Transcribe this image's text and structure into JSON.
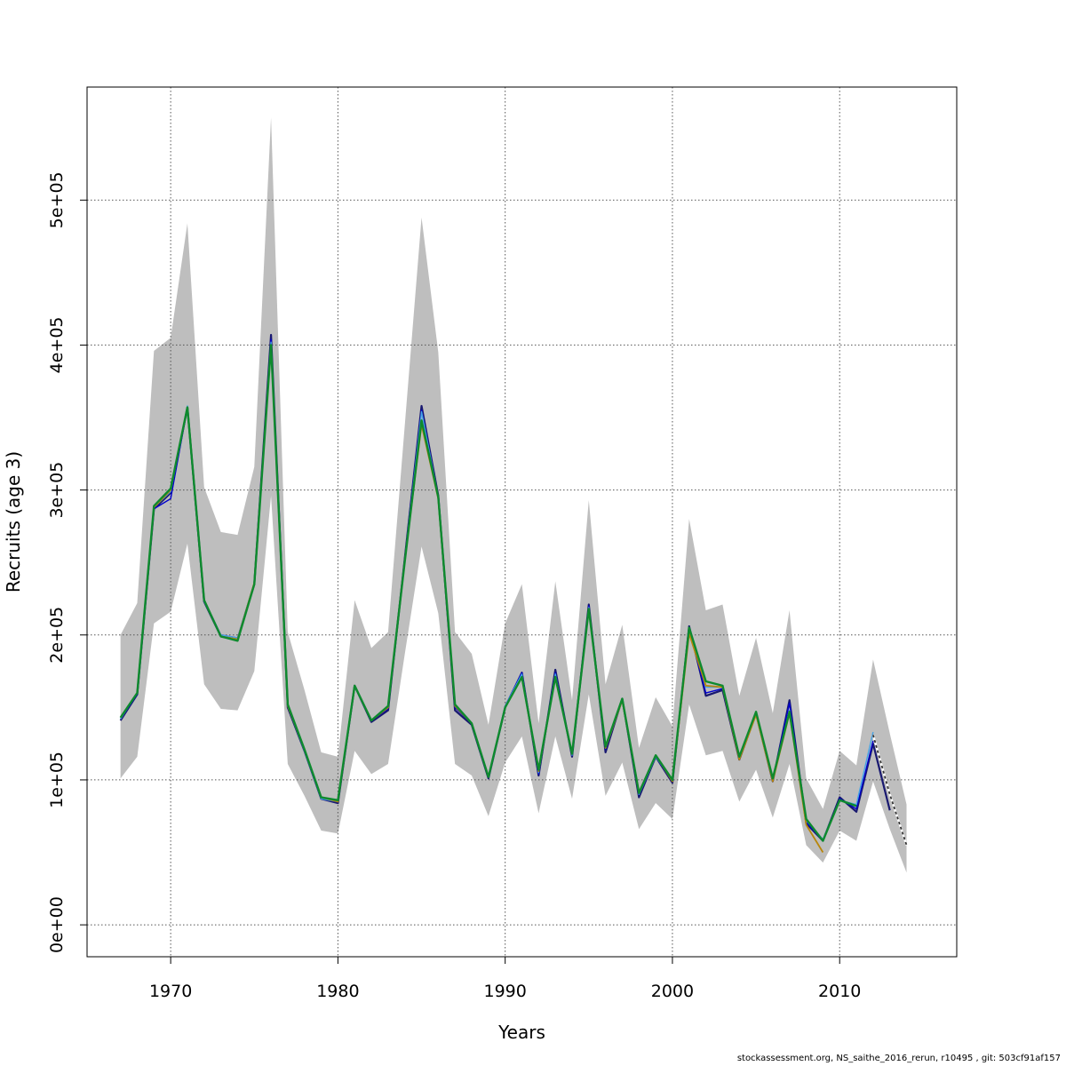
{
  "chart_data": {
    "type": "line",
    "xlabel": "Years",
    "ylabel": "Recruits (age 3)",
    "xlim": [
      1965,
      2017
    ],
    "ylim": [
      -22000,
      578000
    ],
    "x_ticks": [
      1970,
      1980,
      1990,
      2000,
      2010
    ],
    "x_tick_labels": [
      "1970",
      "1980",
      "1990",
      "2000",
      "2010"
    ],
    "y_ticks": [
      0,
      100000,
      200000,
      300000,
      400000,
      500000
    ],
    "y_tick_labels": [
      "0e+00",
      "1e+05",
      "2e+05",
      "3e+05",
      "4e+05",
      "5e+05"
    ],
    "grid": true,
    "footer": "stockassessment.org, NS_saithe_2016_rerun, r10495 , git: 503cf91af157",
    "colors": {
      "band": "#bebebe",
      "grid": "#555555",
      "navy": "#191970",
      "blue": "#0000cd",
      "skyblue": "#45a3e6",
      "goldenrod": "#b8860b",
      "green": "#0e8a2e",
      "dashed": "#333333"
    },
    "confidence_band": {
      "x": [
        1967,
        1968,
        1969,
        1970,
        1971,
        1972,
        1973,
        1974,
        1975,
        1976,
        1977,
        1978,
        1979,
        1980,
        1981,
        1982,
        1983,
        1984,
        1985,
        1986,
        1987,
        1988,
        1989,
        1990,
        1991,
        1992,
        1993,
        1994,
        1995,
        1996,
        1997,
        1998,
        1999,
        2000,
        2001,
        2002,
        2003,
        2004,
        2005,
        2006,
        2007,
        2008,
        2009,
        2010,
        2011,
        2012,
        2013,
        2014
      ],
      "upper": [
        200000,
        222000,
        396000,
        405000,
        484000,
        302000,
        271000,
        269000,
        316000,
        557000,
        202000,
        162000,
        119000,
        116000,
        224000,
        191000,
        202000,
        345000,
        488000,
        395000,
        202000,
        187000,
        138000,
        208000,
        235000,
        139000,
        237000,
        155000,
        293000,
        166000,
        207000,
        122000,
        157000,
        137000,
        280000,
        217000,
        221000,
        158000,
        198000,
        146000,
        217000,
        101000,
        80000,
        120000,
        110000,
        183000,
        132000,
        83000
      ],
      "lower": [
        101000,
        116000,
        208000,
        216000,
        263000,
        166000,
        149000,
        148000,
        175000,
        296000,
        111000,
        89000,
        65000,
        63000,
        120000,
        104000,
        111000,
        187000,
        261000,
        215000,
        111000,
        103000,
        75000,
        112000,
        130000,
        77000,
        130000,
        87000,
        159000,
        89000,
        112000,
        66000,
        84000,
        73000,
        152000,
        117000,
        120000,
        85000,
        107000,
        74000,
        111000,
        55000,
        43000,
        65000,
        58000,
        99000,
        66000,
        36000
      ]
    },
    "series": [
      {
        "color": "navy",
        "width": 2.2,
        "x": [
          1967,
          1968,
          1969,
          1970,
          1971,
          1972,
          1973,
          1974,
          1975,
          1976,
          1977,
          1978,
          1979,
          1980,
          1981,
          1982,
          1983,
          1984,
          1985,
          1986,
          1987,
          1988,
          1989,
          1990,
          1991,
          1992,
          1993,
          1994,
          1995,
          1996,
          1997,
          1998,
          1999,
          2000,
          2001,
          2002,
          2003,
          2004,
          2005,
          2006,
          2007,
          2008,
          2009,
          2010,
          2011,
          2012,
          2013
        ],
        "y": [
          141000,
          159000,
          287000,
          298000,
          357000,
          223000,
          199000,
          197000,
          235000,
          407000,
          150000,
          120000,
          87000,
          84000,
          165000,
          140000,
          148000,
          253000,
          358000,
          296000,
          148000,
          138000,
          101000,
          150000,
          174000,
          103000,
          176000,
          116000,
          221000,
          119000,
          156000,
          88000,
          116000,
          98000,
          206000,
          158000,
          162000,
          114000,
          146000,
          99000,
          155000,
          70000,
          58000,
          88000,
          78000,
          125000,
          79000
        ]
      },
      {
        "color": "blue",
        "width": 1.4,
        "x": [
          1967,
          1968,
          1969,
          1970,
          1971,
          1972,
          1973,
          1974,
          1975,
          1976,
          1977,
          1978,
          1979,
          1980,
          1981,
          1982,
          1983,
          1984,
          1985,
          1986,
          1987,
          1988,
          1989,
          1990,
          1991,
          1992,
          1993,
          1994,
          1995,
          1996,
          1997,
          1998,
          1999,
          2000,
          2001,
          2002,
          2003,
          2004,
          2005,
          2006,
          2007,
          2008,
          2009,
          2010,
          2011,
          2012
        ],
        "y": [
          142000,
          159000,
          287000,
          294000,
          357000,
          224000,
          200000,
          198000,
          236000,
          404000,
          151000,
          120000,
          87000,
          85000,
          165000,
          141000,
          149000,
          253000,
          355000,
          295000,
          150000,
          139000,
          102000,
          151000,
          174000,
          104000,
          174000,
          117000,
          220000,
          121000,
          155000,
          90000,
          116000,
          99000,
          204000,
          160000,
          163000,
          114000,
          146000,
          100000,
          153000,
          71000,
          58000,
          87000,
          80000,
          127000
        ]
      },
      {
        "color": "skyblue",
        "width": 1.4,
        "x": [
          1967,
          1968,
          1969,
          1970,
          1971,
          1972,
          1973,
          1974,
          1975,
          1976,
          1977,
          1978,
          1979,
          1980,
          1981,
          1982,
          1983,
          1984,
          1985,
          1986,
          1987,
          1988,
          1989,
          1990,
          1991,
          1992,
          1993,
          1994,
          1995,
          1996,
          1997,
          1998,
          1999,
          2000,
          2001,
          2002,
          2003,
          2004,
          2005,
          2006,
          2007,
          2008,
          2009,
          2010,
          2011,
          2012
        ],
        "y": [
          142000,
          160000,
          288000,
          299000,
          358000,
          223000,
          200000,
          198000,
          236000,
          402000,
          151000,
          120000,
          87000,
          85000,
          165000,
          141000,
          150000,
          252000,
          354000,
          295000,
          151000,
          139000,
          102000,
          151000,
          173000,
          105000,
          173000,
          117000,
          219000,
          122000,
          155000,
          90000,
          116000,
          100000,
          203000,
          164000,
          164000,
          115000,
          146000,
          101000,
          148000,
          72000,
          59000,
          86000,
          83000,
          133000
        ]
      },
      {
        "color": "goldenrod",
        "width": 1.8,
        "x": [
          1967,
          1968,
          1969,
          1970,
          1971,
          1972,
          1973,
          1974,
          1975,
          1976,
          1977,
          1978,
          1979,
          1980,
          1981,
          1982,
          1983,
          1984,
          1985,
          1986,
          1987,
          1988,
          1989,
          1990,
          1991,
          1992,
          1993,
          1994,
          1995,
          1996,
          1997,
          1998,
          1999,
          2000,
          2001,
          2002,
          2003,
          2004,
          2005,
          2006,
          2007,
          2008,
          2009
        ],
        "y": [
          143000,
          160000,
          288000,
          300000,
          357000,
          224000,
          199000,
          197000,
          236000,
          400000,
          151000,
          121000,
          88000,
          85000,
          165000,
          141000,
          150000,
          252000,
          345000,
          294000,
          151000,
          139000,
          102000,
          150000,
          171000,
          106000,
          171000,
          118000,
          218000,
          122000,
          155000,
          91000,
          117000,
          99000,
          201000,
          165000,
          164000,
          114000,
          145000,
          99000,
          146000,
          69000,
          50000
        ]
      },
      {
        "color": "green",
        "width": 2.4,
        "x": [
          1967,
          1968,
          1969,
          1970,
          1971,
          1972,
          1973,
          1974,
          1975,
          1976,
          1977,
          1978,
          1979,
          1980,
          1981,
          1982,
          1983,
          1984,
          1985,
          1986,
          1987,
          1988,
          1989,
          1990,
          1991,
          1992,
          1993,
          1994,
          1995,
          1996,
          1997,
          1998,
          1999,
          2000,
          2001,
          2002,
          2003,
          2004,
          2005,
          2006,
          2007,
          2008,
          2009,
          2010,
          2011
        ],
        "y": [
          143000,
          160000,
          289000,
          301000,
          357000,
          224000,
          199000,
          196000,
          235000,
          400000,
          152000,
          121000,
          88000,
          86000,
          165000,
          141000,
          151000,
          251000,
          348000,
          295000,
          152000,
          139000,
          102000,
          150000,
          171000,
          107000,
          171000,
          118000,
          218000,
          123000,
          156000,
          91000,
          117000,
          100000,
          205000,
          168000,
          165000,
          116000,
          147000,
          101000,
          147000,
          73000,
          58000,
          86000,
          82000
        ]
      },
      {
        "color": "dashed",
        "width": 1.8,
        "dash": true,
        "x": [
          2012,
          2013,
          2014
        ],
        "y": [
          131000,
          90000,
          55000
        ]
      }
    ]
  }
}
